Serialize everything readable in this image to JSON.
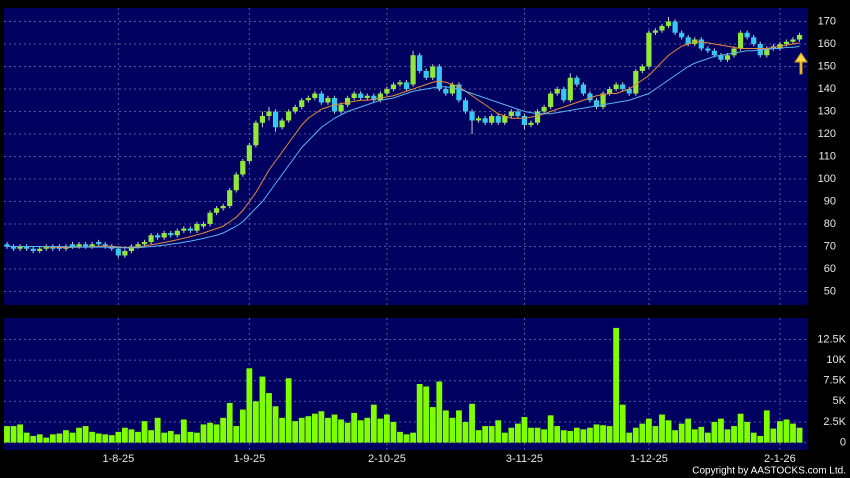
{
  "chart_data": {
    "type": "candlestick",
    "categories": [
      null,
      null,
      null,
      null,
      null,
      null,
      null,
      null,
      null,
      null,
      null,
      null,
      null,
      null,
      null,
      null,
      null,
      "1-8-25",
      null,
      null,
      null,
      null,
      null,
      null,
      null,
      null,
      null,
      null,
      null,
      null,
      null,
      null,
      null,
      null,
      null,
      null,
      null,
      "1-9-25",
      null,
      null,
      null,
      null,
      null,
      null,
      null,
      null,
      null,
      null,
      null,
      null,
      null,
      null,
      null,
      null,
      null,
      null,
      null,
      null,
      "2-10-25",
      null,
      null,
      null,
      null,
      null,
      null,
      null,
      null,
      null,
      null,
      null,
      null,
      null,
      null,
      null,
      null,
      null,
      null,
      null,
      null,
      "3-11-25",
      null,
      null,
      null,
      null,
      null,
      null,
      null,
      null,
      null,
      null,
      null,
      null,
      null,
      null,
      null,
      null,
      null,
      null,
      "1-12-25",
      null,
      null,
      null,
      null,
      null,
      null,
      null,
      null,
      null,
      null,
      null,
      null,
      null,
      null,
      null,
      null,
      null,
      null,
      null,
      "2-1-26",
      null,
      null,
      null
    ],
    "open": [
      71,
      70,
      69,
      70,
      69,
      68,
      69,
      70,
      70,
      69,
      71,
      70,
      71,
      70,
      72,
      71,
      70,
      69,
      66,
      68,
      70,
      71,
      72,
      75,
      74,
      76,
      75,
      77,
      78,
      77,
      79,
      80,
      85,
      87,
      88,
      95,
      102,
      108,
      115,
      125,
      128,
      130,
      123,
      126,
      130,
      132,
      135,
      136,
      138,
      134,
      136,
      130,
      133,
      136,
      138,
      136,
      137,
      135,
      138,
      140,
      142,
      143,
      142,
      155,
      148,
      145,
      150,
      140,
      138,
      142,
      135,
      130,
      126,
      127,
      125,
      128,
      125,
      128,
      130,
      128,
      124,
      125,
      130,
      132,
      138,
      140,
      135,
      145,
      142,
      138,
      135,
      132,
      138,
      140,
      142,
      140,
      138,
      148,
      150,
      165,
      166,
      168,
      170,
      165,
      163,
      160,
      162,
      158,
      157,
      155,
      153,
      155,
      158,
      165,
      163,
      160,
      155,
      159,
      158,
      160,
      161,
      162
    ],
    "high": [
      72,
      71,
      71,
      71,
      70,
      70,
      71,
      71,
      71,
      71,
      72,
      72,
      72,
      72,
      73,
      72,
      71,
      70,
      69,
      71,
      72,
      73,
      76,
      76,
      77,
      77,
      78,
      79,
      79,
      81,
      81,
      86,
      88,
      89,
      96,
      103,
      109,
      116,
      126,
      130,
      132,
      131,
      127,
      131,
      133,
      136,
      137,
      139,
      139,
      137,
      137,
      134,
      137,
      139,
      139,
      138,
      138,
      139,
      141,
      143,
      144,
      144,
      157,
      156,
      149,
      151,
      151,
      141,
      143,
      143,
      136,
      131,
      128,
      128,
      129,
      129,
      129,
      131,
      131,
      129,
      126,
      131,
      133,
      139,
      141,
      141,
      147,
      146,
      143,
      139,
      136,
      139,
      141,
      143,
      143,
      141,
      149,
      151,
      166,
      167,
      169,
      172,
      171,
      166,
      164,
      163,
      163,
      159,
      158,
      156,
      156,
      159,
      166,
      166,
      164,
      161,
      159,
      160,
      161,
      162,
      163,
      165
    ],
    "low": [
      69,
      68,
      68,
      68,
      67,
      67,
      68,
      68,
      68,
      68,
      69,
      69,
      69,
      69,
      70,
      69,
      68,
      65,
      65,
      67,
      69,
      70,
      71,
      73,
      73,
      74,
      74,
      76,
      76,
      76,
      78,
      79,
      84,
      86,
      87,
      94,
      101,
      107,
      114,
      123,
      126,
      121,
      122,
      125,
      129,
      131,
      134,
      135,
      133,
      133,
      129,
      129,
      132,
      135,
      135,
      135,
      134,
      134,
      137,
      139,
      141,
      139,
      141,
      147,
      144,
      144,
      139,
      137,
      137,
      134,
      129,
      120,
      125,
      124,
      124,
      124,
      124,
      127,
      127,
      122,
      123,
      124,
      129,
      131,
      137,
      134,
      134,
      141,
      137,
      134,
      131,
      131,
      137,
      139,
      139,
      137,
      137,
      147,
      149,
      164,
      165,
      167,
      164,
      162,
      159,
      159,
      157,
      156,
      154,
      152,
      152,
      154,
      157,
      162,
      159,
      154,
      154,
      157,
      157,
      159,
      160,
      161
    ],
    "close": [
      70,
      69,
      70,
      69,
      68,
      69,
      70,
      69,
      69,
      70,
      70,
      71,
      70,
      71,
      71,
      70,
      69,
      66,
      68,
      70,
      71,
      72,
      75,
      74,
      76,
      75,
      77,
      78,
      77,
      80,
      80,
      85,
      87,
      88,
      95,
      102,
      108,
      115,
      125,
      128,
      130,
      123,
      126,
      130,
      132,
      135,
      136,
      138,
      134,
      136,
      130,
      133,
      136,
      138,
      136,
      137,
      135,
      138,
      140,
      142,
      143,
      140,
      155,
      148,
      145,
      150,
      140,
      138,
      142,
      135,
      130,
      126,
      127,
      125,
      128,
      125,
      128,
      130,
      128,
      124,
      125,
      130,
      132,
      138,
      140,
      135,
      145,
      142,
      138,
      135,
      132,
      138,
      140,
      142,
      140,
      138,
      148,
      150,
      165,
      166,
      168,
      170,
      165,
      163,
      160,
      162,
      158,
      157,
      155,
      153,
      155,
      158,
      165,
      163,
      160,
      155,
      158,
      158,
      160,
      161,
      162,
      164
    ],
    "up_color": "#8fe83a",
    "down_color": "#35c8f0",
    "ma_lines": [
      {
        "color": "#e8893a",
        "values": [
          70,
          70,
          70,
          70,
          70,
          70,
          69.8,
          69.7,
          69.6,
          69.5,
          69.6,
          69.7,
          69.8,
          70,
          70.1,
          70.2,
          70.1,
          69.8,
          69.6,
          69.6,
          69.8,
          70.2,
          70.8,
          71.2,
          71.8,
          72.4,
          73,
          73.7,
          74.4,
          75.2,
          76,
          77,
          78,
          79,
          81,
          83,
          86,
          90,
          94,
          99,
          104,
          108,
          112,
          116,
          120,
          124,
          127,
          129,
          131,
          132,
          133,
          133.5,
          134,
          134.5,
          135,
          135,
          135.5,
          136,
          136.5,
          137,
          138,
          139,
          140,
          141,
          142,
          143,
          143.5,
          143,
          142,
          141,
          139,
          137,
          135,
          133,
          131,
          129,
          128,
          127,
          127,
          127,
          127.5,
          128,
          129,
          130,
          131,
          132,
          133,
          134,
          135,
          136,
          137,
          137.5,
          138,
          138,
          139,
          140,
          142,
          144,
          146,
          149,
          152,
          155,
          157,
          159,
          160,
          161,
          161,
          160.5,
          160,
          159.5,
          159,
          158.5,
          158,
          158,
          158,
          158,
          158,
          158.5,
          159,
          159.5,
          160,
          160.5
        ]
      },
      {
        "color": "#5ab4f0",
        "values": [
          70,
          70,
          70,
          70,
          70,
          70,
          70,
          70,
          70,
          69.9,
          69.8,
          69.7,
          69.7,
          69.7,
          69.7,
          69.7,
          69.6,
          69.5,
          69.4,
          69.4,
          69.5,
          69.7,
          70,
          70.3,
          70.6,
          71,
          71.4,
          71.9,
          72.4,
          73,
          73.6,
          74.3,
          75,
          76,
          77.5,
          79,
          81,
          84,
          87,
          90,
          94,
          98,
          102,
          106,
          110,
          114,
          117,
          120,
          123,
          125,
          127,
          128.5,
          130,
          131,
          132,
          133,
          134,
          135,
          135.5,
          136,
          137,
          138,
          139,
          139.5,
          140,
          140.5,
          141,
          141,
          140.5,
          140,
          139,
          138,
          137,
          136,
          135,
          134,
          133,
          132,
          131,
          130,
          129.5,
          129,
          129,
          129,
          129.5,
          130,
          130.5,
          131,
          131.5,
          132,
          132.5,
          133,
          133.5,
          134,
          134.5,
          135,
          136,
          137,
          138,
          140,
          142,
          144,
          146,
          148,
          150,
          151.5,
          152.5,
          153.5,
          154.5,
          155,
          155.5,
          156,
          156.5,
          157,
          157,
          157.5,
          157.5,
          158,
          158,
          158.5,
          158.5,
          159
        ]
      }
    ],
    "ylim": [
      44,
      176
    ],
    "yticks": [
      50,
      60,
      70,
      80,
      90,
      100,
      110,
      120,
      130,
      140,
      150,
      160,
      170
    ],
    "volume": {
      "color": "#80ff00",
      "values": [
        2000,
        2000,
        2200,
        1200,
        800,
        1000,
        600,
        1000,
        1100,
        1500,
        1200,
        1800,
        2000,
        1300,
        1100,
        1000,
        900,
        1300,
        1800,
        1600,
        1300,
        2600,
        1500,
        3000,
        1200,
        1400,
        1000,
        2800,
        1300,
        1200,
        2200,
        2400,
        2200,
        3000,
        4800,
        2000,
        4000,
        9000,
        5000,
        8000,
        6000,
        4400,
        3000,
        7800,
        2600,
        3000,
        3200,
        3500,
        3800,
        3000,
        3400,
        2800,
        2400,
        3600,
        2700,
        3000,
        4600,
        2900,
        3400,
        2500,
        1300,
        1000,
        1200,
        7100,
        6800,
        4300,
        7400,
        3900,
        3000,
        3900,
        2500,
        4700,
        1500,
        2000,
        2000,
        2700,
        1200,
        1800,
        2300,
        3100,
        1800,
        1800,
        1600,
        3300,
        2000,
        1500,
        1400,
        1800,
        1600,
        1800,
        2200,
        2100,
        2000,
        13900,
        4600,
        1200,
        1800,
        2300,
        2900,
        2000,
        3400,
        2700,
        1500,
        2300,
        2900,
        1600,
        1900,
        1200,
        2500,
        2900,
        1600,
        2000,
        3500,
        2500,
        1200,
        800,
        3900,
        1700,
        2600,
        2800,
        2300,
        1800
      ],
      "ylim": [
        -900,
        15100
      ],
      "yticks": [
        0,
        {
          "value": 2500,
          "label": "2.5K"
        },
        {
          "value": 5000,
          "label": "5K"
        },
        {
          "value": 7500,
          "label": "7.5K"
        },
        {
          "value": 10000,
          "label": "10K"
        },
        {
          "value": 12500,
          "label": "12.5K"
        }
      ]
    },
    "grid": true
  },
  "copyright": "Copyright by AASTOCKS.com Ltd."
}
